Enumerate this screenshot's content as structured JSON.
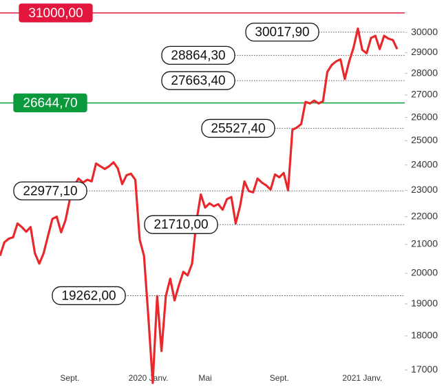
{
  "chart_data": {
    "type": "line",
    "log_scale": true,
    "ylim": [
      16500,
      31500
    ],
    "yticks": [
      17000,
      18000,
      19000,
      20000,
      21000,
      22000,
      23000,
      24000,
      25000,
      26000,
      27000,
      28000,
      29000,
      30000
    ],
    "categories": [
      null,
      null,
      null,
      null,
      null,
      null,
      null,
      null,
      null,
      null,
      null,
      null,
      null,
      null,
      null,
      null,
      "Sept.",
      null,
      null,
      null,
      null,
      null,
      null,
      null,
      null,
      null,
      null,
      null,
      null,
      null,
      null,
      null,
      null,
      null,
      "2020 Janv.",
      null,
      null,
      null,
      null,
      null,
      null,
      null,
      null,
      null,
      null,
      null,
      null,
      "Mai",
      null,
      null,
      null,
      null,
      null,
      null,
      null,
      null,
      null,
      null,
      null,
      null,
      null,
      null,
      null,
      null,
      "Sept.",
      null,
      null,
      null,
      null,
      null,
      null,
      null,
      null,
      null,
      null,
      null,
      null,
      null,
      null,
      null,
      null,
      null,
      null,
      "2021 Janv.",
      null,
      null,
      null,
      null,
      null,
      null,
      null,
      null
    ],
    "series": [
      {
        "color": "#e8282b",
        "values": [
          20600,
          21070,
          21200,
          21250,
          21750,
          21620,
          21450,
          21620,
          20690,
          20330,
          20690,
          21300,
          21920,
          22000,
          21430,
          21870,
          22660,
          23190,
          23460,
          23300,
          23410,
          23350,
          24060,
          23950,
          23840,
          23950,
          24110,
          23860,
          23240,
          23590,
          23650,
          23410,
          21170,
          20600,
          18560,
          16630,
          19250,
          17550,
          19250,
          19820,
          19110,
          19610,
          20050,
          19930,
          20330,
          21820,
          22840,
          22340,
          22500,
          22390,
          22470,
          22260,
          22660,
          22740,
          21750,
          22390,
          23350,
          22970,
          22920,
          23460,
          23300,
          23190,
          23030,
          23620,
          23510,
          23680,
          23000,
          25470,
          25560,
          25710,
          26690,
          26620,
          26750,
          26620,
          26720,
          28070,
          28400,
          28570,
          28670,
          27740,
          28570,
          29240,
          30200,
          29130,
          28970,
          29720,
          29830,
          29170,
          29830,
          29690,
          29620,
          29170
        ]
      }
    ],
    "levels": [
      {
        "value": 31000,
        "label": "31000,00",
        "filled": true,
        "color": "#e3173e"
      },
      {
        "value": 26644.7,
        "label": "26644,70",
        "filled": true,
        "color": "#0a9a3c"
      },
      {
        "value": 30017.9,
        "label": "30017,90",
        "filled": false,
        "color": "#111111"
      },
      {
        "value": 28864.3,
        "label": "28864,30",
        "filled": false,
        "color": "#111111"
      },
      {
        "value": 27663.4,
        "label": "27663,40",
        "filled": false,
        "color": "#111111"
      },
      {
        "value": 25527.4,
        "label": "25527,40",
        "filled": false,
        "color": "#111111"
      },
      {
        "value": 22977.1,
        "label": "22977,10",
        "filled": false,
        "color": "#111111"
      },
      {
        "value": 21710,
        "label": "21710,00",
        "filled": false,
        "color": "#111111"
      },
      {
        "value": 19262,
        "label": "19262,00",
        "filled": false,
        "color": "#111111"
      }
    ]
  }
}
